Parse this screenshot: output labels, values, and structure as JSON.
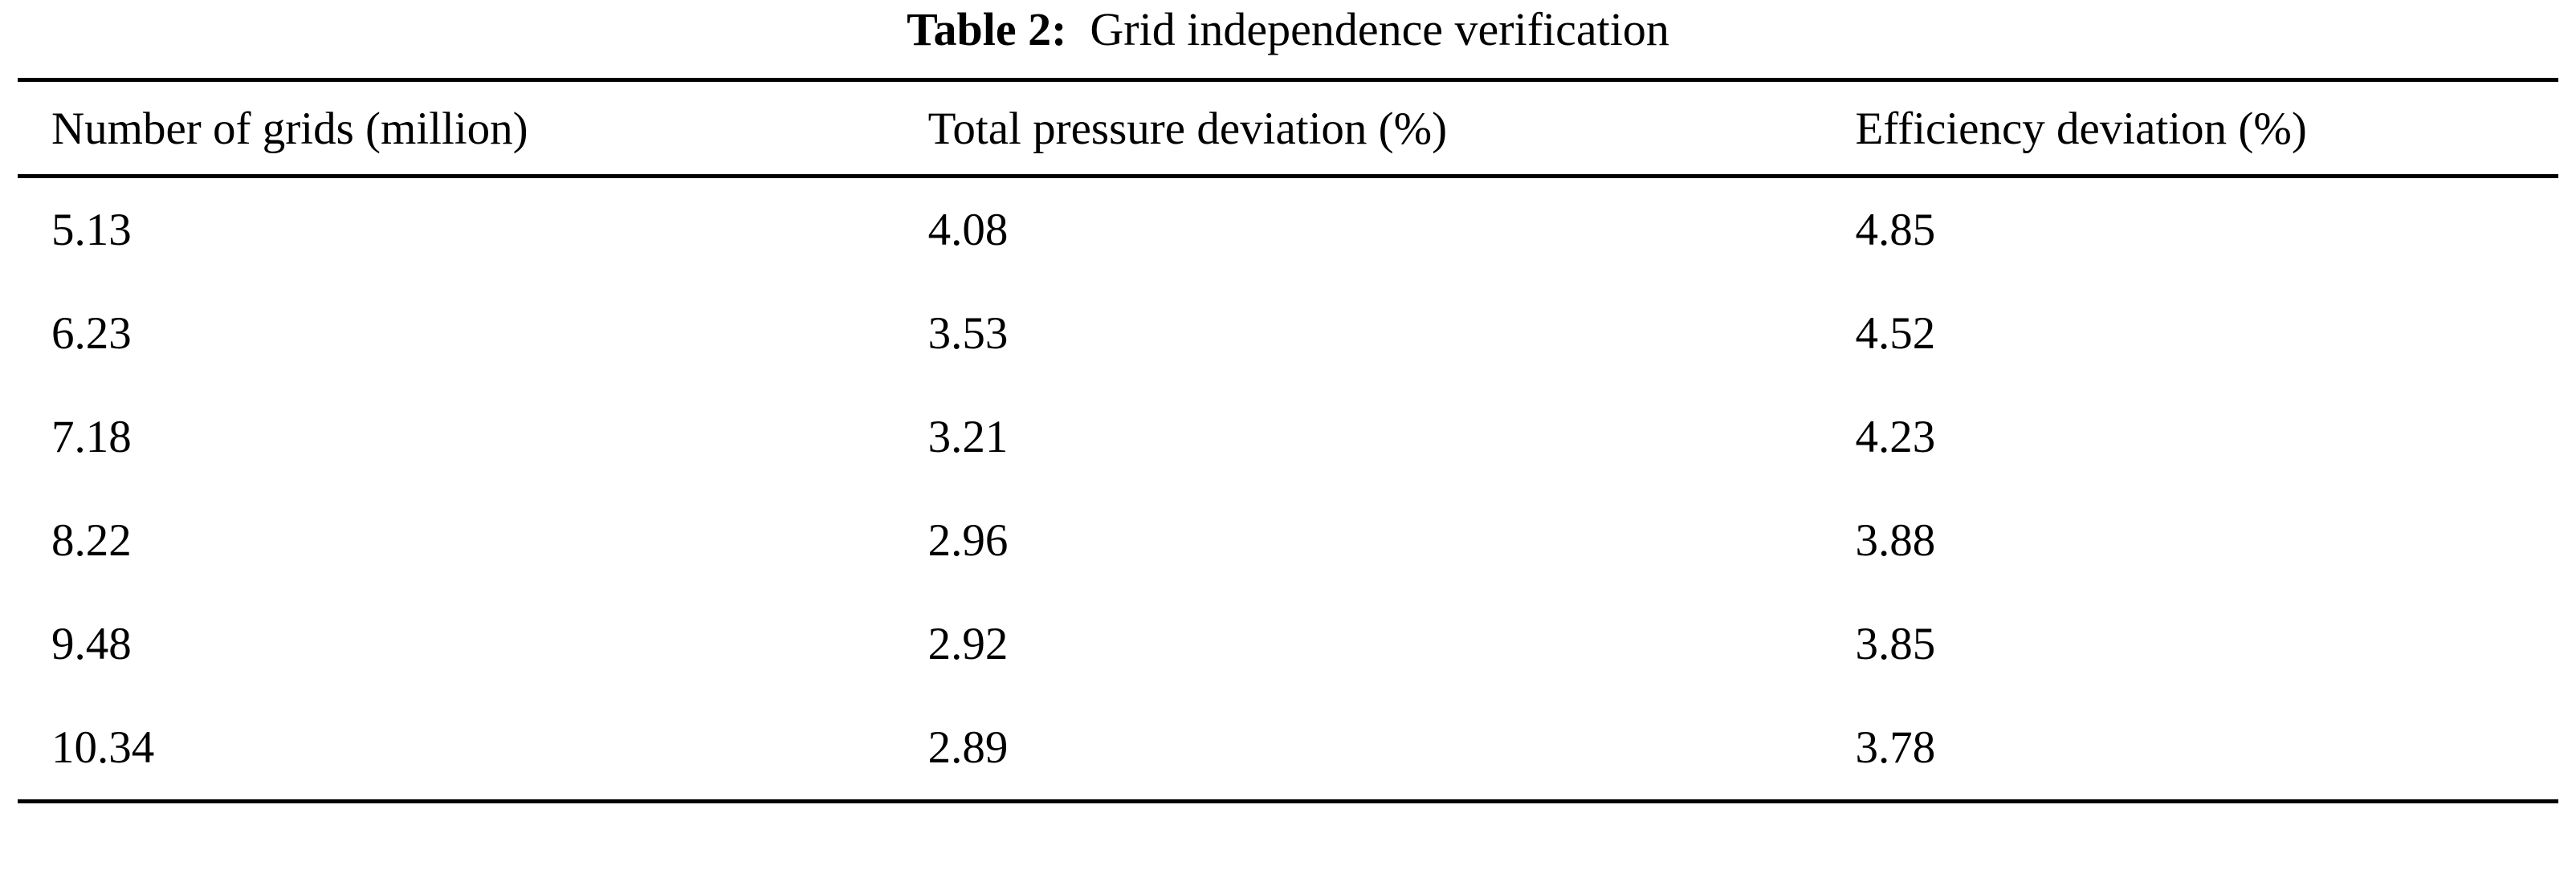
{
  "caption": {
    "label": "Table 2:",
    "text": "Grid independence verification"
  },
  "table": {
    "headers": [
      "Number of grids (million)",
      "Total pressure deviation (%)",
      "Efficiency deviation (%)"
    ],
    "rows": [
      [
        "5.13",
        "4.08",
        "4.85"
      ],
      [
        "6.23",
        "3.53",
        "4.52"
      ],
      [
        "7.18",
        "3.21",
        "4.23"
      ],
      [
        "8.22",
        "2.96",
        "3.88"
      ],
      [
        "9.48",
        "2.92",
        "3.85"
      ],
      [
        "10.34",
        "2.89",
        "3.78"
      ]
    ]
  },
  "chart_data": {
    "type": "table",
    "title": "Table 2: Grid independence verification",
    "columns": [
      "Number of grids (million)",
      "Total pressure deviation (%)",
      "Efficiency deviation (%)"
    ],
    "rows": [
      [
        5.13,
        4.08,
        4.85
      ],
      [
        6.23,
        3.53,
        4.52
      ],
      [
        7.18,
        3.21,
        4.23
      ],
      [
        8.22,
        2.96,
        3.88
      ],
      [
        9.48,
        2.92,
        3.85
      ],
      [
        10.34,
        2.89,
        3.78
      ]
    ]
  }
}
